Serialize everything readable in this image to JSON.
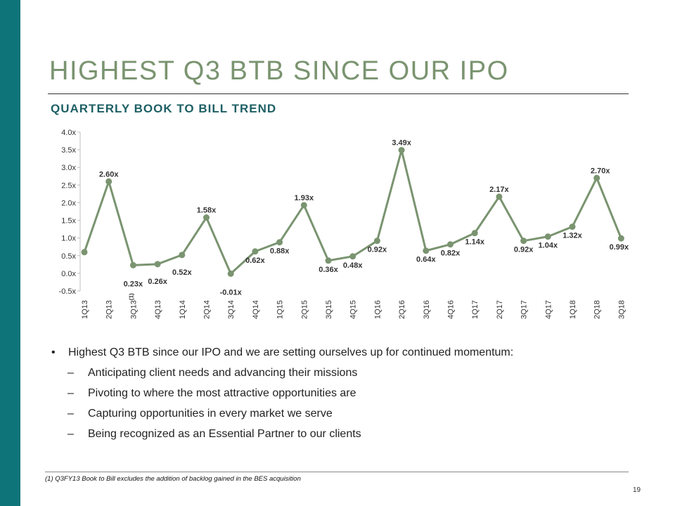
{
  "slide": {
    "title": "HIGHEST Q3 BTB SINCE OUR IPO",
    "subtitle": "QUARTERLY BOOK TO BILL TREND",
    "footnote": "(1) Q3FY13 Book to Bill excludes the addition of backlog gained in the BES acquisition",
    "page_number": "19"
  },
  "bullets": {
    "main": "Highest Q3 BTB since our IPO and we are setting ourselves up for continued momentum:",
    "bullet_symbol": "•",
    "dash_symbol": "–",
    "sub": [
      "Anticipating client needs and advancing their missions",
      "Pivoting to where the most attractive opportunities are",
      "Capturing opportunities in every market we serve",
      "Being recognized as an Essential Partner to our clients"
    ]
  },
  "colors": {
    "sidebar": "#0f7479",
    "title": "#7a9470",
    "subtitle": "#1d5f64",
    "line": "#7a9470"
  },
  "chart_data": {
    "type": "line",
    "title": "QUARTERLY BOOK TO BILL TREND",
    "xlabel": "",
    "ylabel": "",
    "ylim": [
      -0.5,
      4.0
    ],
    "yticks": [
      "-0.5x",
      "0.0x",
      "0.5x",
      "1.0x",
      "1.5x",
      "2.0x",
      "2.5x",
      "3.0x",
      "3.5x",
      "4.0x"
    ],
    "grid": false,
    "categories": [
      "1Q13",
      "2Q13",
      "3Q13",
      "4Q13",
      "1Q14",
      "2Q14",
      "3Q14",
      "4Q14",
      "1Q15",
      "2Q15",
      "3Q15",
      "4Q15",
      "1Q16",
      "2Q16",
      "3Q16",
      "4Q16",
      "1Q17",
      "2Q17",
      "3Q17",
      "4Q17",
      "1Q18",
      "2Q18",
      "3Q18"
    ],
    "category_superscripts": {
      "2": "(1)"
    },
    "series": [
      {
        "name": "Book to Bill",
        "values": [
          0.6,
          2.6,
          0.23,
          0.26,
          0.52,
          1.58,
          -0.01,
          0.62,
          0.88,
          1.93,
          0.36,
          0.48,
          0.92,
          3.49,
          0.64,
          0.82,
          1.14,
          2.17,
          0.92,
          1.04,
          1.32,
          2.7,
          0.99
        ],
        "labels": [
          "",
          "2.60x",
          "0.23x",
          "0.26x",
          "0.52x",
          "1.58x",
          "-0.01x",
          "0.62x",
          "0.88x",
          "1.93x",
          "0.36x",
          "0.48x",
          "0.92x",
          "3.49x",
          "0.64x",
          "0.82x",
          "1.14x",
          "2.17x",
          "0.92x",
          "1.04x",
          "1.32x",
          "2.70x",
          "0.99x"
        ]
      }
    ]
  }
}
